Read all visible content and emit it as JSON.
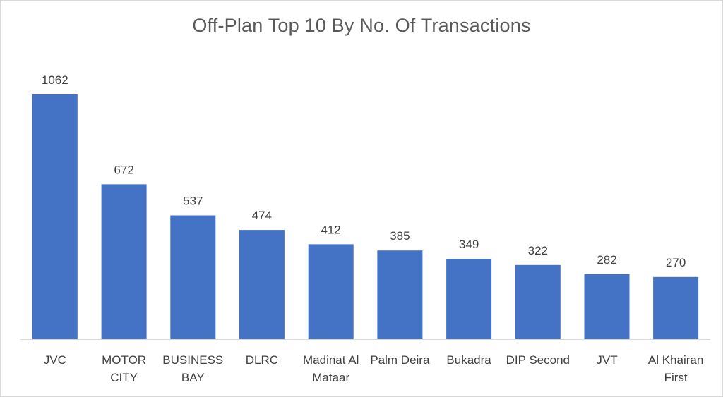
{
  "colors": {
    "bar": "#4472C4",
    "axis": "#d9d9d9",
    "text": "#404040",
    "title": "#595959"
  },
  "chart_data": {
    "type": "bar",
    "title": "Off-Plan Top 10 By No. Of Transactions",
    "xlabel": "",
    "ylabel": "",
    "categories": [
      [
        "JVC"
      ],
      [
        "MOTOR",
        "CITY"
      ],
      [
        "BUSINESS",
        "BAY"
      ],
      [
        "DLRC"
      ],
      [
        "Madinat Al",
        "Mataar"
      ],
      [
        "Palm Deira"
      ],
      [
        "Bukadra"
      ],
      [
        "DIP Second"
      ],
      [
        "JVT"
      ],
      [
        "Al Khairan",
        "First"
      ]
    ],
    "values": [
      1062,
      672,
      537,
      474,
      412,
      385,
      349,
      322,
      282,
      270
    ],
    "data_labels": [
      "1062",
      "672",
      "537",
      "474",
      "412",
      "385",
      "349",
      "322",
      "282",
      "270"
    ],
    "ylim": [
      0,
      1062
    ],
    "grid": false,
    "legend": "none"
  }
}
